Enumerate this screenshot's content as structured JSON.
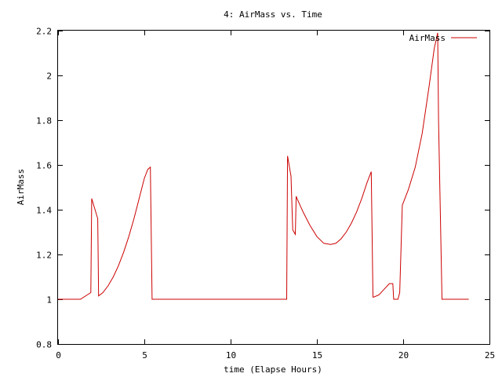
{
  "chart_data": {
    "type": "line",
    "title": "4: AirMass vs. Time",
    "xlabel": "time (Elapse Hours)",
    "ylabel": "AirMass",
    "xlim": [
      0,
      25
    ],
    "ylim": [
      0.8,
      2.2
    ],
    "x_ticks": [
      0,
      5,
      10,
      15,
      20,
      25
    ],
    "x_tick_labels": [
      "0",
      "5",
      "10",
      "15",
      "20",
      "25"
    ],
    "y_ticks": [
      0.8,
      1,
      1.2,
      1.4,
      1.6,
      1.8,
      2,
      2.2
    ],
    "y_tick_labels": [
      "0.8",
      "1",
      "1.2",
      "1.4",
      "1.6",
      "1.8",
      "2",
      "2.2"
    ],
    "grid": false,
    "legend_position": "top-right",
    "series": [
      {
        "name": "AirMass",
        "color": "#cc0000",
        "x": [
          0.0,
          1.3,
          1.9,
          1.95,
          2.3,
          2.35,
          2.6,
          2.9,
          3.2,
          3.5,
          3.8,
          4.1,
          4.4,
          4.7,
          5.0,
          5.2,
          5.35,
          5.45,
          5.5,
          13.25,
          13.3,
          13.5,
          13.6,
          13.75,
          13.8,
          13.85,
          14.2,
          14.6,
          15.0,
          15.4,
          15.8,
          16.1,
          16.4,
          16.7,
          17.0,
          17.3,
          17.6,
          17.9,
          18.15,
          18.25,
          18.3,
          18.6,
          18.9,
          19.2,
          19.4,
          19.45,
          19.7,
          19.8,
          19.95,
          20.3,
          20.7,
          21.1,
          21.5,
          21.8,
          22.0,
          22.05,
          22.25,
          22.3,
          23.8
        ],
        "y": [
          1.0,
          1.0,
          1.03,
          1.45,
          1.36,
          1.015,
          1.03,
          1.06,
          1.1,
          1.15,
          1.21,
          1.28,
          1.36,
          1.45,
          1.54,
          1.58,
          1.59,
          1.0,
          1.0,
          1.0,
          1.64,
          1.55,
          1.31,
          1.29,
          1.46,
          1.45,
          1.39,
          1.33,
          1.28,
          1.25,
          1.245,
          1.25,
          1.27,
          1.3,
          1.34,
          1.39,
          1.45,
          1.52,
          1.57,
          1.01,
          1.01,
          1.02,
          1.045,
          1.07,
          1.07,
          1.0,
          1.0,
          1.03,
          1.42,
          1.49,
          1.59,
          1.74,
          1.95,
          2.12,
          2.19,
          1.8,
          1.0,
          1.0,
          1.0
        ]
      }
    ]
  }
}
